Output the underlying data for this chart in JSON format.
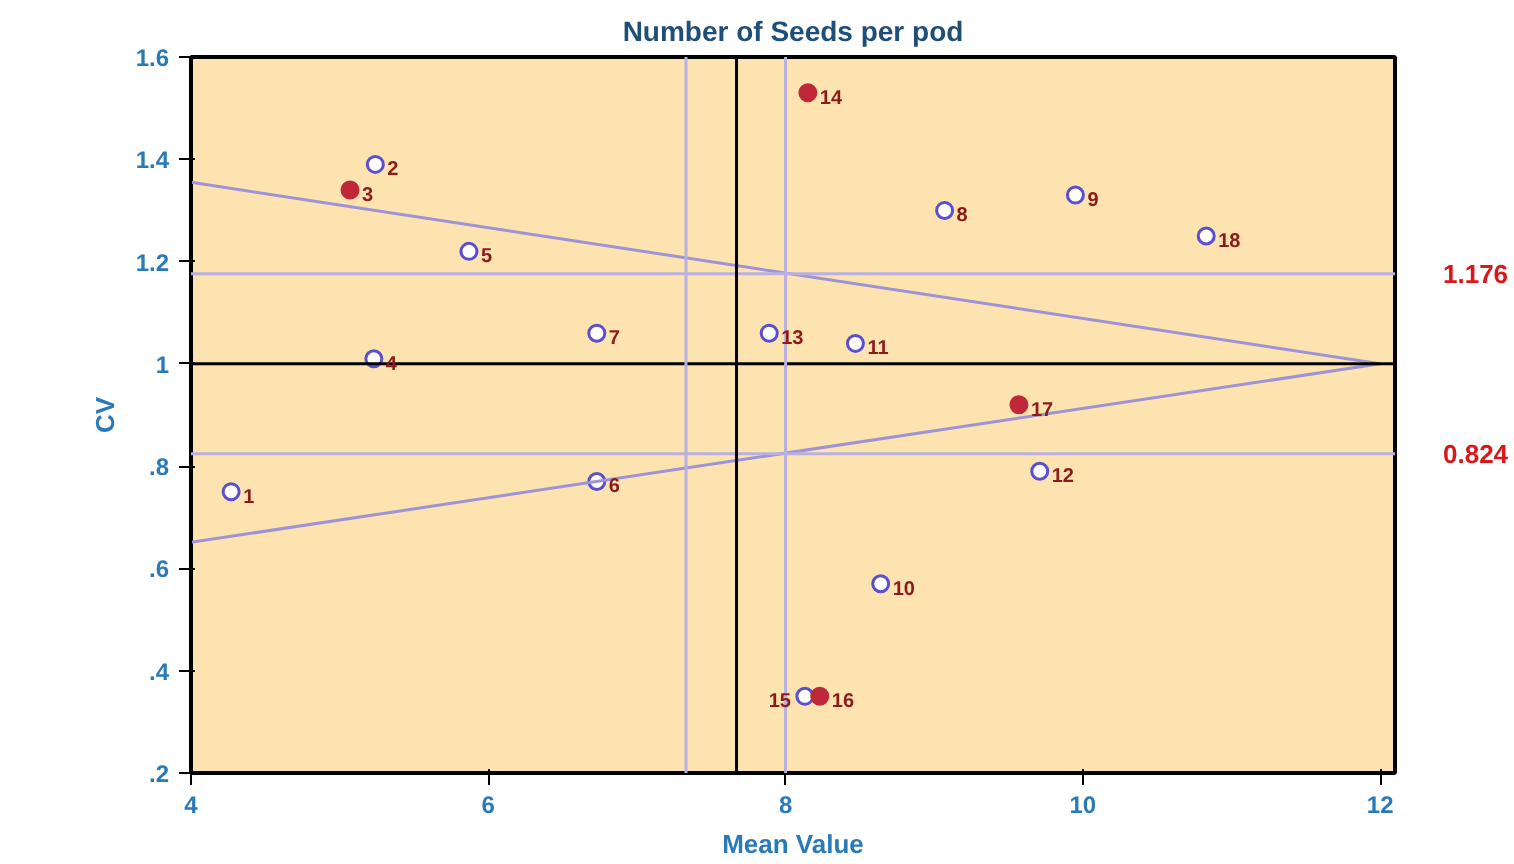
{
  "chart_data": {
    "type": "scatter",
    "title": "Number of Seeds per pod",
    "xlabel": "Mean Value",
    "ylabel": "CV",
    "xlim": [
      4,
      12.1
    ],
    "ylim": [
      0.2,
      1.6
    ],
    "xticks": [
      4,
      6,
      8,
      10,
      12
    ],
    "yticks": [
      {
        "value": 0.2,
        "label": ".2"
      },
      {
        "value": 0.4,
        "label": ".4"
      },
      {
        "value": 0.6,
        "label": ".6"
      },
      {
        "value": 0.8,
        "label": ".8"
      },
      1,
      1.2,
      1.4,
      1.6
    ],
    "grid": false,
    "series": [
      {
        "color": "#5a4fcf",
        "marker": "circle",
        "x": [
          4.27,
          5.24,
          5.23,
          5.87,
          6.73,
          6.73,
          9.07,
          9.95,
          8.64,
          8.47,
          9.71,
          7.89,
          8.13,
          10.83
        ],
        "values": [
          0.75,
          1.39,
          1.01,
          1.22,
          0.77,
          1.06,
          1.3,
          1.33,
          0.57,
          1.04,
          0.79,
          1.06,
          0.35,
          1.25
        ]
      },
      {
        "color": "#c0283a",
        "marker": "circle",
        "x": [
          5.07,
          8.15,
          8.23,
          9.57
        ],
        "values": [
          1.34,
          1.53,
          0.35,
          0.92
        ]
      },
      {
        "type": "line",
        "color": "#9d93d6",
        "x": [
          4,
          12
        ],
        "values": [
          1.355,
          1.0
        ]
      },
      {
        "type": "line",
        "color": "#9d93d6",
        "x": [
          4,
          12
        ],
        "values": [
          0.651,
          1.0
        ]
      }
    ],
    "ref_lines": [
      {
        "axis": "y",
        "value": 1,
        "color": "#000000"
      },
      {
        "axis": "y",
        "value": 1.176,
        "label": "1.176",
        "color": "#b8b0e0"
      },
      {
        "axis": "y",
        "value": 0.824,
        "label": "0.824",
        "color": "#b8b0e0"
      },
      {
        "axis": "x",
        "value": 7.67,
        "color": "#000000"
      },
      {
        "axis": "x",
        "value": 7.33,
        "color": "#b8b0e0"
      },
      {
        "axis": "x",
        "value": 8,
        "color": "#b8b0e0"
      }
    ],
    "annotations": [
      {
        "text": "1",
        "x": 4.27,
        "y": 0.75
      },
      {
        "text": "2",
        "x": 5.24,
        "y": 1.39
      },
      {
        "text": "3",
        "x": 5.07,
        "y": 1.34
      },
      {
        "text": "4",
        "x": 5.23,
        "y": 1.01
      },
      {
        "text": "5",
        "x": 5.87,
        "y": 1.22
      },
      {
        "text": "6",
        "x": 6.73,
        "y": 0.77
      },
      {
        "text": "7",
        "x": 6.73,
        "y": 1.06
      },
      {
        "text": "8",
        "x": 9.07,
        "y": 1.3
      },
      {
        "text": "9",
        "x": 9.95,
        "y": 1.33
      },
      {
        "text": "10",
        "x": 8.64,
        "y": 0.57
      },
      {
        "text": "11",
        "x": 8.47,
        "y": 1.04
      },
      {
        "text": "12",
        "x": 9.71,
        "y": 0.79
      },
      {
        "text": "13",
        "x": 7.89,
        "y": 1.06
      },
      {
        "text": "14",
        "x": 8.15,
        "y": 1.53
      },
      {
        "text": "15",
        "x": 8.13,
        "y": 0.35
      },
      {
        "text": "16",
        "x": 8.23,
        "y": 0.35
      },
      {
        "text": "17",
        "x": 9.57,
        "y": 0.92
      },
      {
        "text": "18",
        "x": 10.83,
        "y": 1.25
      }
    ]
  }
}
